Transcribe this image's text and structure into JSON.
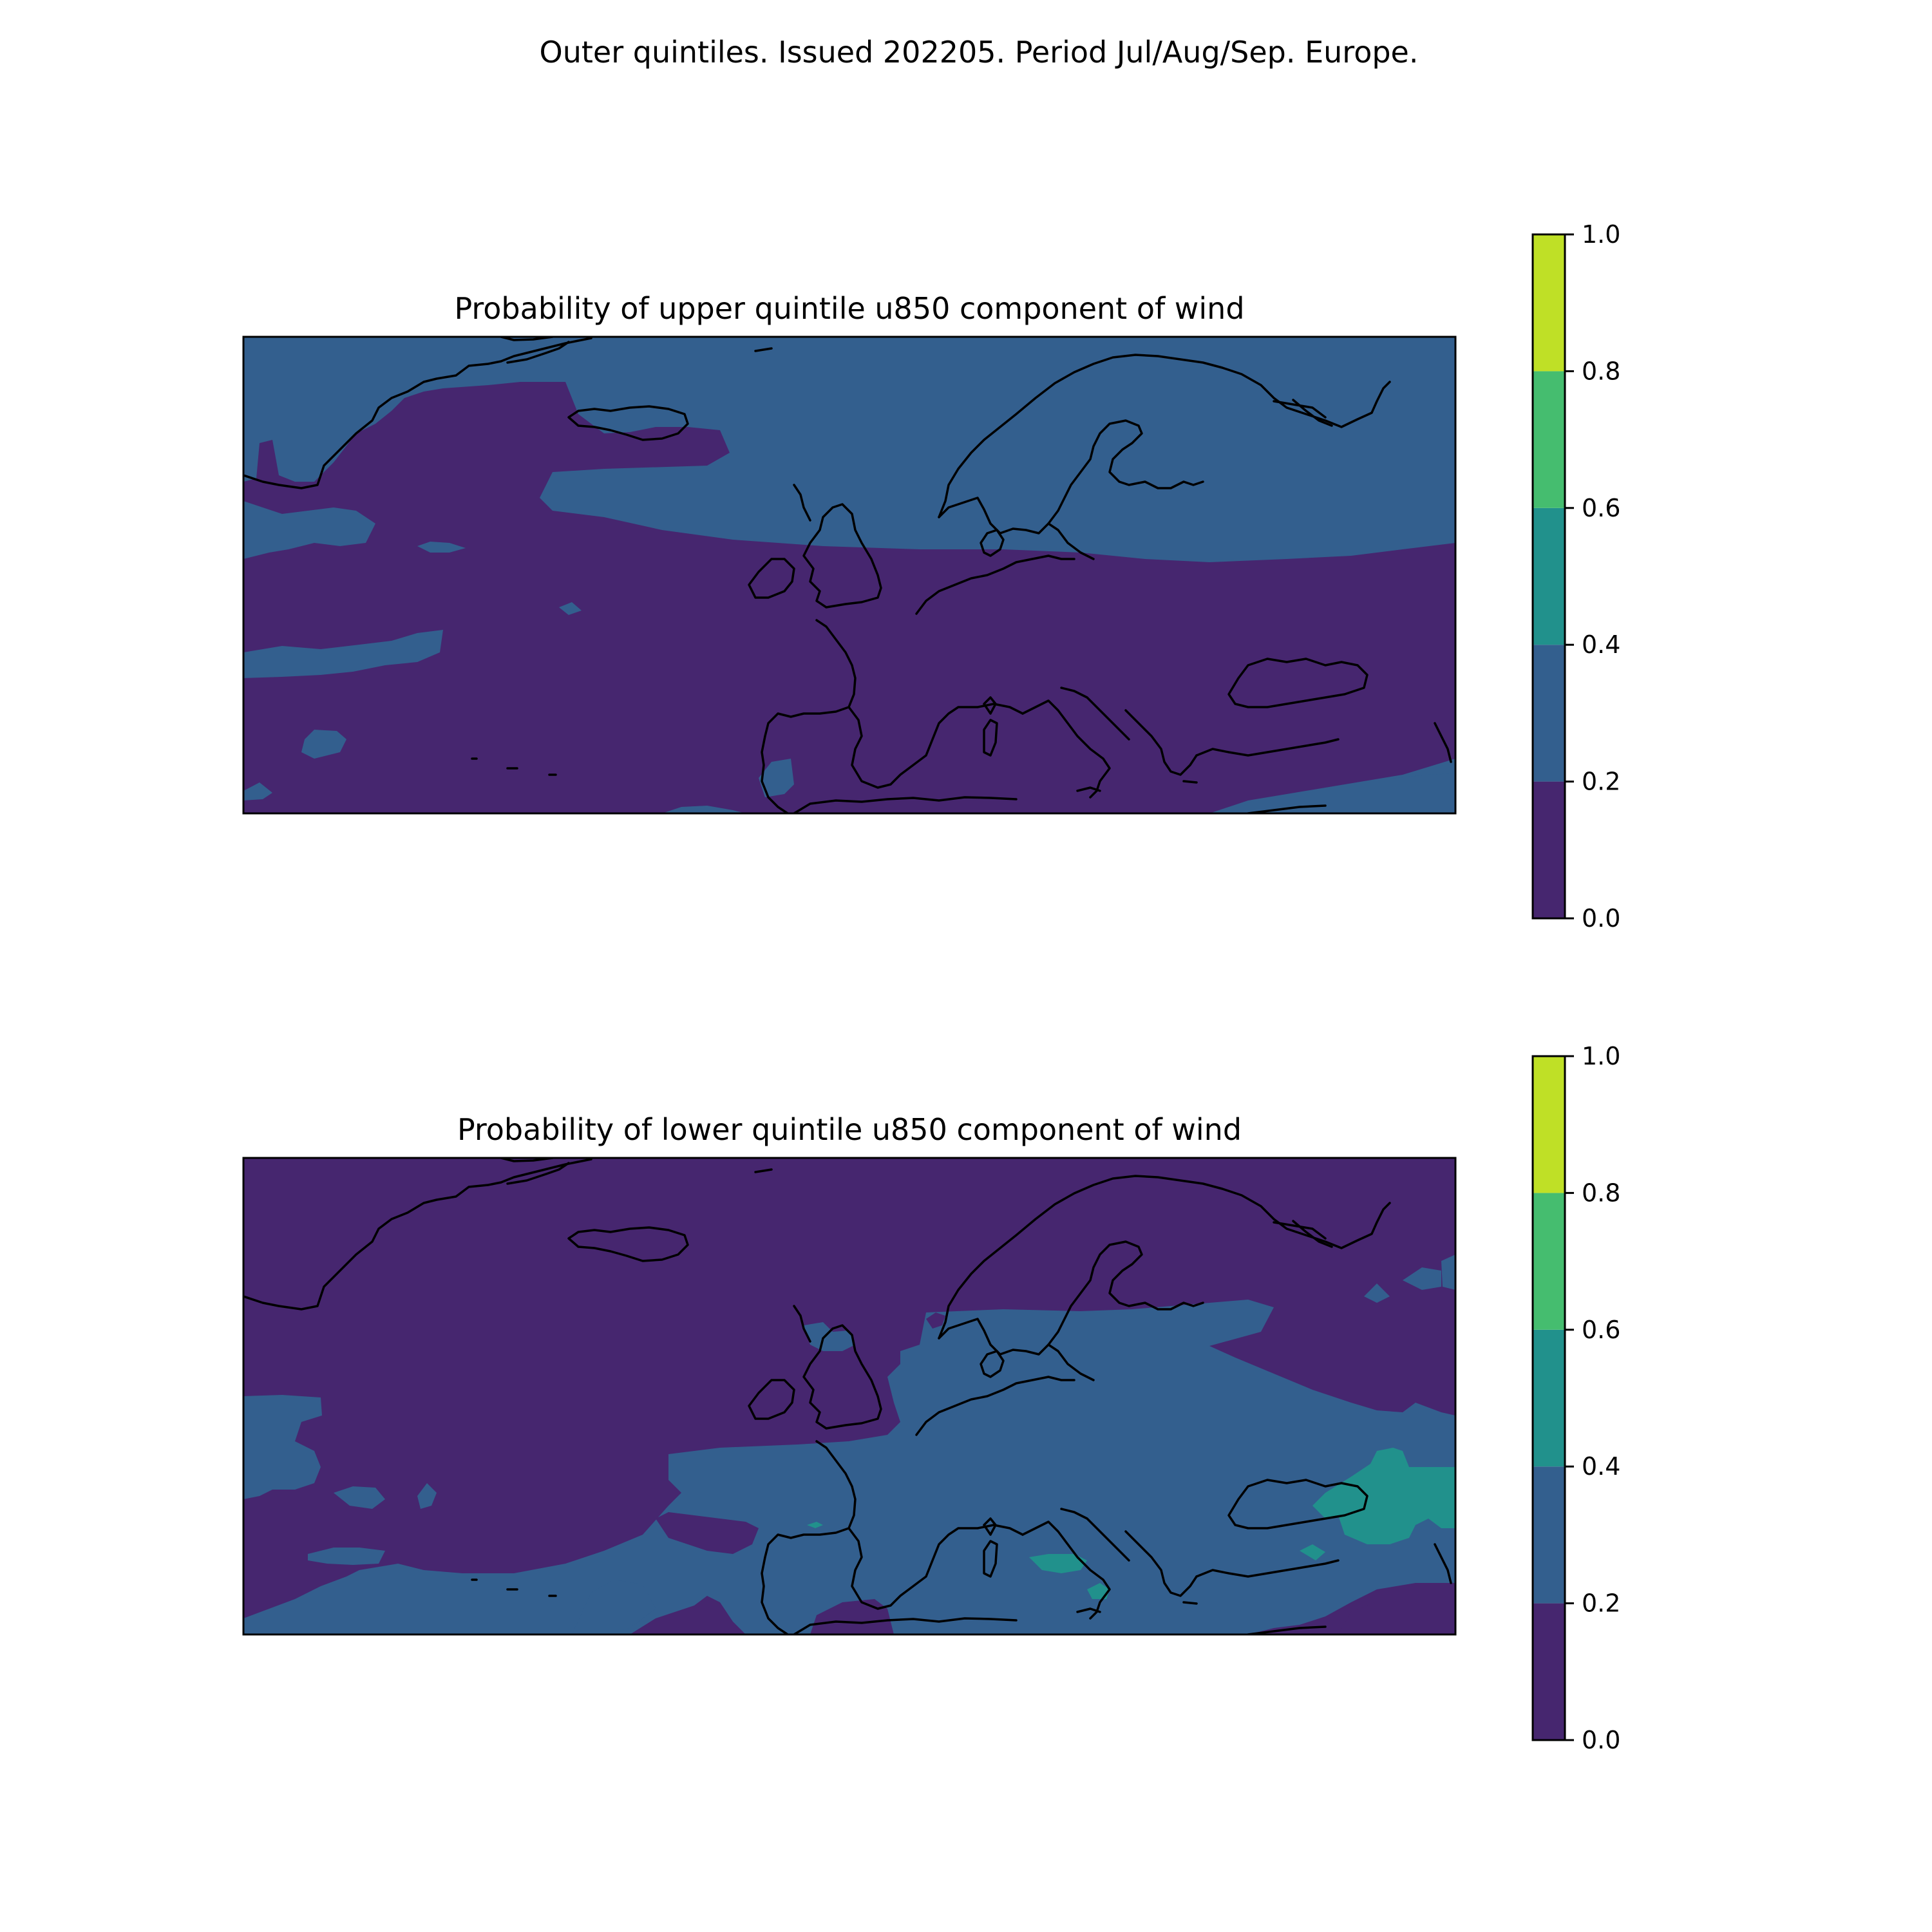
{
  "figure": {
    "suptitle": "Outer quintiles. Issued 202205. Period Jul/Aug/Sep. Europe."
  },
  "colorbar": {
    "levels": [
      0.0,
      0.2,
      0.4,
      0.6,
      0.8,
      1.0
    ],
    "tick_labels": [
      "0.0",
      "0.2",
      "0.4",
      "0.6",
      "0.8",
      "1.0"
    ],
    "colors": [
      "#46266f",
      "#335f8e",
      "#21918c",
      "#45bd6f",
      "#bfe026"
    ]
  },
  "panels": [
    {
      "title": "Probability of upper quintile u850 component of wind",
      "background_class": "0.2-0.4",
      "regions": [
        {
          "area": "Atlantic south of Iceland (Greenland coast to UK)",
          "class": "0.0-0.2"
        },
        {
          "area": "Western/central Europe, North Sea and Mediterranean",
          "class": "0.0-0.2"
        },
        {
          "area": "Eastern Europe and Black Sea",
          "class": "0.0-0.2"
        },
        {
          "area": "Scandinavia, Baltic, Norwegian Sea and Arctic",
          "class": "0.2-0.4"
        },
        {
          "area": "Southern margin (North Africa, Turkey)",
          "class": "0.2-0.4"
        }
      ]
    },
    {
      "title": "Probability of lower quintile u850 component of wind",
      "background_class": "0.0-0.2",
      "regions": [
        {
          "area": "North Atlantic, Greenland, Iceland and Scandinavia",
          "class": "0.0-0.2"
        },
        {
          "area": "Central and eastern Europe, North Sea, Baltic",
          "class": "0.2-0.4"
        },
        {
          "area": "Mediterranean and southern Atlantic",
          "class": "0.2-0.4"
        },
        {
          "area": "Caucasus / eastern Black Sea",
          "class": "0.4-0.6"
        },
        {
          "area": "Southern Italy / Tyrrhenian Sea",
          "class": "0.4-0.6"
        }
      ]
    }
  ]
}
